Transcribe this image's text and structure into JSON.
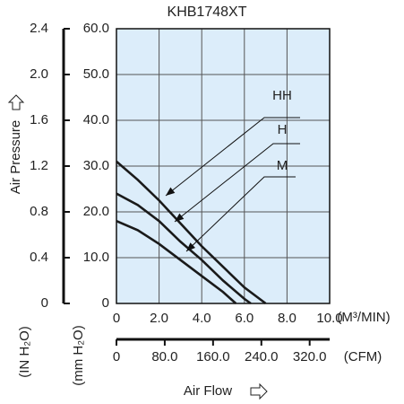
{
  "chart_data": {
    "type": "line",
    "title": "KHB1748XT",
    "y_label": "Air Pressure",
    "x_label": "Air Flow",
    "y_unit": "(mm H₂O)",
    "y2_unit": "(IN H₂O)",
    "x_unit": "(M³/MIN)",
    "x2_unit": "(CFM)",
    "xlim": [
      0,
      10
    ],
    "xticks": [
      0,
      {
        "value": 2,
        "label": "2.0"
      },
      {
        "value": 4,
        "label": "4.0"
      },
      {
        "value": 6,
        "label": "6.0"
      },
      {
        "value": 8,
        "label": "8.0"
      },
      {
        "value": 10,
        "label": "10.0"
      }
    ],
    "x2lim": [
      0,
      353.1
    ],
    "x2ticks": [
      0,
      {
        "value": 80,
        "label": "80.0"
      },
      {
        "value": 160,
        "label": "160.0"
      },
      {
        "value": 240,
        "label": "240.0"
      },
      {
        "value": 320,
        "label": "320.0"
      }
    ],
    "ylim": [
      0,
      60
    ],
    "yticks": [
      0,
      {
        "value": 10,
        "label": "10.0"
      },
      {
        "value": 20,
        "label": "20.0"
      },
      {
        "value": 30,
        "label": "30.0"
      },
      {
        "value": 40,
        "label": "40.0"
      },
      {
        "value": 50,
        "label": "50.0"
      },
      {
        "value": 60,
        "label": "60.0"
      }
    ],
    "y2lim": [
      0,
      2.4
    ],
    "y2ticks": [
      0,
      0.4,
      0.8,
      1.2,
      1.6,
      {
        "value": 2,
        "label": "2.0"
      },
      2.4
    ],
    "grid": true,
    "series": [
      {
        "name": "HH",
        "color": "#1a1a1a",
        "x": [
          0,
          1,
          2,
          3,
          4,
          5,
          6,
          7
        ],
        "values": [
          31,
          27,
          22.5,
          17.5,
          12.5,
          8,
          3.5,
          0
        ]
      },
      {
        "name": "H",
        "color": "#1a1a1a",
        "x": [
          0,
          1,
          2,
          3,
          4,
          5,
          6,
          6.3
        ],
        "values": [
          24,
          21.5,
          18,
          13.5,
          9.5,
          5,
          1,
          0
        ]
      },
      {
        "name": "M",
        "color": "#1a1a1a",
        "x": [
          0,
          1,
          2,
          3,
          4,
          5,
          5.6
        ],
        "values": [
          18,
          16,
          13,
          9.5,
          6,
          2.5,
          0
        ]
      }
    ]
  }
}
